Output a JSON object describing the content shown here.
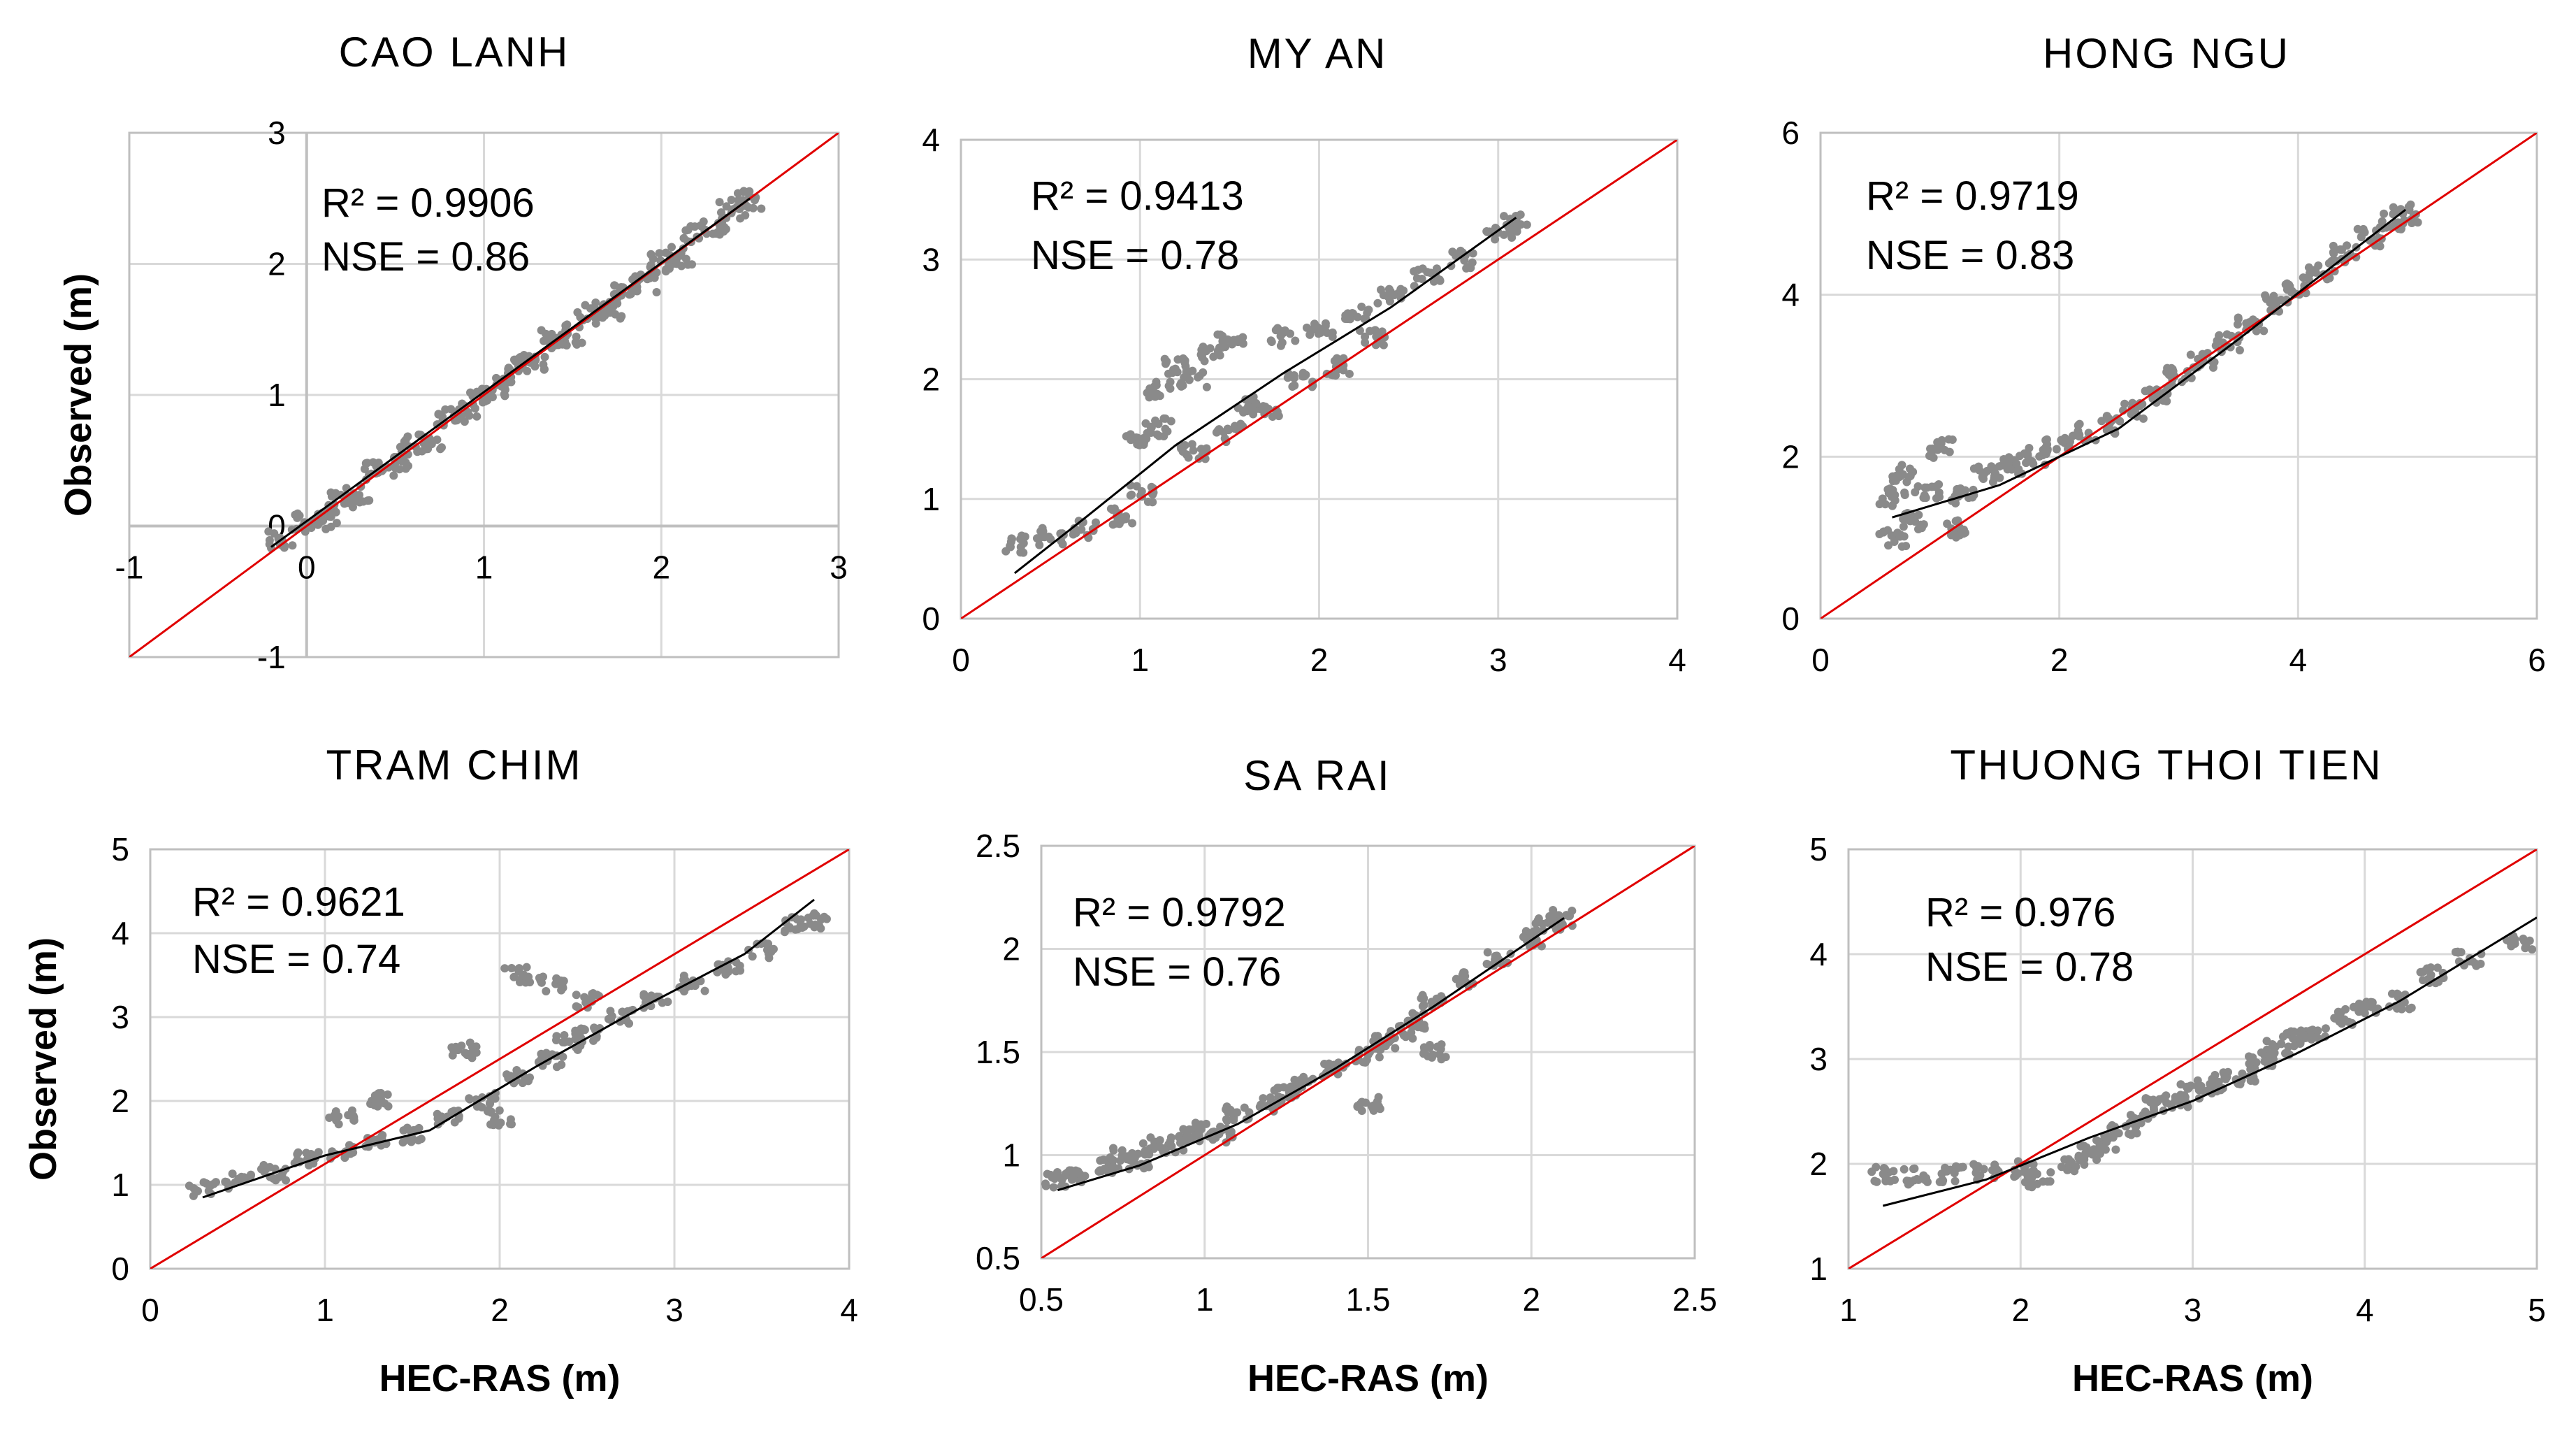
{
  "colors": {
    "points": "#8a8a8a",
    "trend": "#000000",
    "one_to_one": "#e00000",
    "grid": "#d9d9d9",
    "frame": "#bfbfbf"
  },
  "shared": {
    "ylabel": "Observed (m)",
    "xlabel": "HEC-RAS (m)"
  },
  "chart_data": [
    {
      "type": "scatter",
      "title": "CAO LANH",
      "xlim": [
        -1,
        3
      ],
      "ylim": [
        -1,
        3
      ],
      "xticks": [
        -1,
        0,
        1,
        2,
        3
      ],
      "yticks": [
        -1,
        0,
        1,
        2,
        3
      ],
      "axes_cross_at_zero": true,
      "stats": {
        "r2": "R² = 0.9906",
        "nse": "NSE = 0.86"
      },
      "ylabel_shown": true,
      "xlabel_shown": false,
      "one_to_one": [
        [
          -1,
          -1
        ],
        [
          3,
          3
        ]
      ],
      "trend": [
        [
          -0.2,
          -0.16
        ],
        [
          2.5,
          2.5
        ]
      ],
      "points": [
        [
          -0.15,
          -0.1
        ],
        [
          0.0,
          0.02
        ],
        [
          0.1,
          0.05
        ],
        [
          0.2,
          0.18
        ],
        [
          0.3,
          0.25
        ],
        [
          0.4,
          0.42
        ],
        [
          0.5,
          0.45
        ],
        [
          0.6,
          0.62
        ],
        [
          0.7,
          0.66
        ],
        [
          0.8,
          0.82
        ],
        [
          0.9,
          0.86
        ],
        [
          1.0,
          1.02
        ],
        [
          1.1,
          1.06
        ],
        [
          1.2,
          1.22
        ],
        [
          1.3,
          1.26
        ],
        [
          1.4,
          1.42
        ],
        [
          1.5,
          1.46
        ],
        [
          1.6,
          1.62
        ],
        [
          1.7,
          1.66
        ],
        [
          1.8,
          1.82
        ],
        [
          1.9,
          1.86
        ],
        [
          2.0,
          2.02
        ],
        [
          2.1,
          2.06
        ],
        [
          2.2,
          2.22
        ],
        [
          2.3,
          2.28
        ],
        [
          2.4,
          2.42
        ],
        [
          2.5,
          2.48
        ]
      ]
    },
    {
      "type": "scatter",
      "title": "MY AN",
      "xlim": [
        0,
        4
      ],
      "ylim": [
        0,
        4
      ],
      "xticks": [
        0,
        1,
        2,
        3,
        4
      ],
      "yticks": [
        0,
        1,
        2,
        3,
        4
      ],
      "axes_cross_at_zero": false,
      "stats": {
        "r2": "R² = 0.9413",
        "nse": "NSE = 0.78"
      },
      "ylabel_shown": false,
      "xlabel_shown": false,
      "one_to_one": [
        [
          0,
          0
        ],
        [
          4,
          4
        ]
      ],
      "trend": [
        [
          0.3,
          0.38
        ],
        [
          0.7,
          0.85
        ],
        [
          1.2,
          1.45
        ],
        [
          1.8,
          2.05
        ],
        [
          2.4,
          2.6
        ],
        [
          3.1,
          3.35
        ]
      ],
      "points": [
        [
          0.3,
          0.62
        ],
        [
          0.5,
          0.68
        ],
        [
          0.7,
          0.75
        ],
        [
          0.9,
          0.85
        ],
        [
          1.0,
          1.05
        ],
        [
          1.0,
          1.5
        ],
        [
          1.1,
          1.6
        ],
        [
          1.1,
          1.9
        ],
        [
          1.2,
          2.1
        ],
        [
          1.3,
          2.0
        ],
        [
          1.4,
          2.2
        ],
        [
          1.5,
          2.3
        ],
        [
          1.3,
          1.4
        ],
        [
          1.5,
          1.55
        ],
        [
          1.7,
          1.75
        ],
        [
          1.8,
          2.35
        ],
        [
          2.0,
          2.4
        ],
        [
          2.2,
          2.55
        ],
        [
          2.4,
          2.7
        ],
        [
          2.6,
          2.85
        ],
        [
          2.8,
          3.0
        ],
        [
          3.0,
          3.2
        ],
        [
          3.1,
          3.3
        ],
        [
          1.9,
          2.0
        ],
        [
          2.1,
          2.1
        ],
        [
          2.3,
          2.35
        ],
        [
          1.6,
          1.8
        ]
      ]
    },
    {
      "type": "scatter",
      "title": "HONG NGU",
      "xlim": [
        0,
        6
      ],
      "ylim": [
        0,
        6
      ],
      "xticks": [
        0,
        2,
        4,
        6
      ],
      "yticks": [
        0,
        2,
        4,
        6
      ],
      "axes_cross_at_zero": false,
      "stats": {
        "r2": "R² = 0.9719",
        "nse": "NSE = 0.83"
      },
      "ylabel_shown": false,
      "xlabel_shown": false,
      "one_to_one": [
        [
          0,
          0
        ],
        [
          6,
          6
        ]
      ],
      "trend": [
        [
          0.6,
          1.25
        ],
        [
          1.5,
          1.65
        ],
        [
          2.5,
          2.35
        ],
        [
          3.5,
          3.45
        ],
        [
          4.9,
          5.05
        ]
      ],
      "points": [
        [
          0.6,
          1.0
        ],
        [
          0.6,
          1.5
        ],
        [
          0.7,
          1.8
        ],
        [
          0.8,
          1.2
        ],
        [
          0.9,
          1.6
        ],
        [
          1.0,
          2.1
        ],
        [
          1.1,
          1.1
        ],
        [
          1.2,
          1.5
        ],
        [
          1.4,
          1.8
        ],
        [
          1.6,
          1.9
        ],
        [
          1.8,
          2.0
        ],
        [
          2.0,
          2.15
        ],
        [
          2.2,
          2.3
        ],
        [
          2.4,
          2.4
        ],
        [
          2.6,
          2.55
        ],
        [
          2.8,
          2.75
        ],
        [
          3.0,
          3.0
        ],
        [
          3.2,
          3.2
        ],
        [
          3.4,
          3.4
        ],
        [
          3.6,
          3.65
        ],
        [
          3.8,
          3.9
        ],
        [
          4.0,
          4.1
        ],
        [
          4.2,
          4.3
        ],
        [
          4.4,
          4.5
        ],
        [
          4.6,
          4.7
        ],
        [
          4.8,
          4.9
        ],
        [
          4.9,
          5.0
        ]
      ]
    },
    {
      "type": "scatter",
      "title": "TRAM CHIM",
      "xlim": [
        0,
        4
      ],
      "ylim": [
        0,
        5
      ],
      "xticks": [
        0,
        1,
        2,
        3,
        4
      ],
      "yticks": [
        0,
        1,
        2,
        3,
        4,
        5
      ],
      "axes_cross_at_zero": false,
      "stats": {
        "r2": "R² = 0.9621",
        "nse": "NSE = 0.74"
      },
      "ylabel_shown": true,
      "xlabel_shown": true,
      "one_to_one": [
        [
          0,
          0
        ],
        [
          4,
          5
        ]
      ],
      "trend": [
        [
          0.3,
          0.85
        ],
        [
          1.0,
          1.35
        ],
        [
          1.6,
          1.65
        ],
        [
          2.2,
          2.4
        ],
        [
          2.8,
          3.1
        ],
        [
          3.4,
          3.75
        ],
        [
          3.8,
          4.4
        ]
      ],
      "points": [
        [
          0.3,
          0.95
        ],
        [
          0.5,
          1.05
        ],
        [
          0.7,
          1.15
        ],
        [
          0.9,
          1.3
        ],
        [
          1.1,
          1.4
        ],
        [
          1.3,
          1.5
        ],
        [
          1.5,
          1.6
        ],
        [
          1.7,
          1.8
        ],
        [
          1.9,
          2.0
        ],
        [
          2.1,
          2.3
        ],
        [
          2.3,
          2.5
        ],
        [
          2.5,
          2.8
        ],
        [
          2.7,
          3.0
        ],
        [
          2.9,
          3.2
        ],
        [
          3.1,
          3.4
        ],
        [
          3.3,
          3.6
        ],
        [
          3.5,
          3.8
        ],
        [
          3.7,
          4.1
        ],
        [
          3.8,
          4.15
        ],
        [
          1.1,
          1.8
        ],
        [
          1.3,
          2.0
        ],
        [
          2.1,
          3.5
        ],
        [
          2.3,
          3.4
        ],
        [
          2.5,
          3.2
        ],
        [
          2.0,
          1.8
        ],
        [
          1.8,
          2.6
        ],
        [
          2.4,
          2.7
        ]
      ]
    },
    {
      "type": "scatter",
      "title": "SA RAI",
      "xlim": [
        0.5,
        2.5
      ],
      "ylim": [
        0.5,
        2.5
      ],
      "xticks": [
        0.5,
        1,
        1.5,
        2,
        2.5
      ],
      "yticks": [
        0.5,
        1,
        1.5,
        2,
        2.5
      ],
      "axes_cross_at_zero": false,
      "stats": {
        "r2": "R² = 0.9792",
        "nse": "NSE = 0.76"
      },
      "ylabel_shown": false,
      "xlabel_shown": true,
      "one_to_one": [
        [
          0.5,
          0.5
        ],
        [
          2.5,
          2.5
        ]
      ],
      "trend": [
        [
          0.55,
          0.83
        ],
        [
          0.8,
          0.95
        ],
        [
          1.1,
          1.15
        ],
        [
          1.4,
          1.42
        ],
        [
          1.7,
          1.72
        ],
        [
          2.1,
          2.15
        ]
      ],
      "points": [
        [
          0.55,
          0.88
        ],
        [
          0.6,
          0.9
        ],
        [
          0.7,
          0.95
        ],
        [
          0.75,
          1.0
        ],
        [
          0.8,
          0.97
        ],
        [
          0.85,
          1.05
        ],
        [
          0.9,
          1.05
        ],
        [
          0.95,
          1.1
        ],
        [
          1.0,
          1.12
        ],
        [
          1.05,
          1.1
        ],
        [
          1.1,
          1.2
        ],
        [
          1.2,
          1.25
        ],
        [
          1.25,
          1.3
        ],
        [
          1.3,
          1.35
        ],
        [
          1.4,
          1.42
        ],
        [
          1.5,
          1.48
        ],
        [
          1.55,
          1.55
        ],
        [
          1.6,
          1.6
        ],
        [
          1.65,
          1.65
        ],
        [
          1.7,
          1.75
        ],
        [
          1.8,
          1.85
        ],
        [
          1.9,
          1.95
        ],
        [
          2.0,
          2.05
        ],
        [
          2.05,
          2.12
        ],
        [
          2.1,
          2.15
        ],
        [
          1.5,
          1.25
        ],
        [
          1.7,
          1.5
        ]
      ]
    },
    {
      "type": "scatter",
      "title": "THUONG THOI TIEN",
      "xlim": [
        1,
        5
      ],
      "ylim": [
        1,
        5
      ],
      "xticks": [
        1,
        2,
        3,
        4,
        5
      ],
      "yticks": [
        1,
        2,
        3,
        4,
        5
      ],
      "axes_cross_at_zero": false,
      "stats": {
        "r2": "R² = 0.976",
        "nse": "NSE = 0.78"
      },
      "ylabel_shown": false,
      "xlabel_shown": true,
      "one_to_one": [
        [
          1,
          1
        ],
        [
          5,
          5
        ]
      ],
      "trend": [
        [
          1.2,
          1.6
        ],
        [
          1.8,
          1.85
        ],
        [
          2.4,
          2.25
        ],
        [
          3.0,
          2.6
        ],
        [
          3.6,
          3.05
        ],
        [
          4.2,
          3.55
        ],
        [
          5.0,
          4.35
        ]
      ],
      "points": [
        [
          1.2,
          1.9
        ],
        [
          1.4,
          1.88
        ],
        [
          1.6,
          1.9
        ],
        [
          1.8,
          1.92
        ],
        [
          2.0,
          1.95
        ],
        [
          2.1,
          1.85
        ],
        [
          2.3,
          2.0
        ],
        [
          2.4,
          2.1
        ],
        [
          2.5,
          2.2
        ],
        [
          2.6,
          2.35
        ],
        [
          2.7,
          2.45
        ],
        [
          2.8,
          2.55
        ],
        [
          2.9,
          2.6
        ],
        [
          3.0,
          2.7
        ],
        [
          3.1,
          2.75
        ],
        [
          3.2,
          2.8
        ],
        [
          3.3,
          2.85
        ],
        [
          3.4,
          3.0
        ],
        [
          3.5,
          3.1
        ],
        [
          3.6,
          3.2
        ],
        [
          3.7,
          3.25
        ],
        [
          3.9,
          3.4
        ],
        [
          4.0,
          3.5
        ],
        [
          4.2,
          3.55
        ],
        [
          4.4,
          3.8
        ],
        [
          4.6,
          3.95
        ],
        [
          4.9,
          4.1
        ]
      ]
    }
  ]
}
